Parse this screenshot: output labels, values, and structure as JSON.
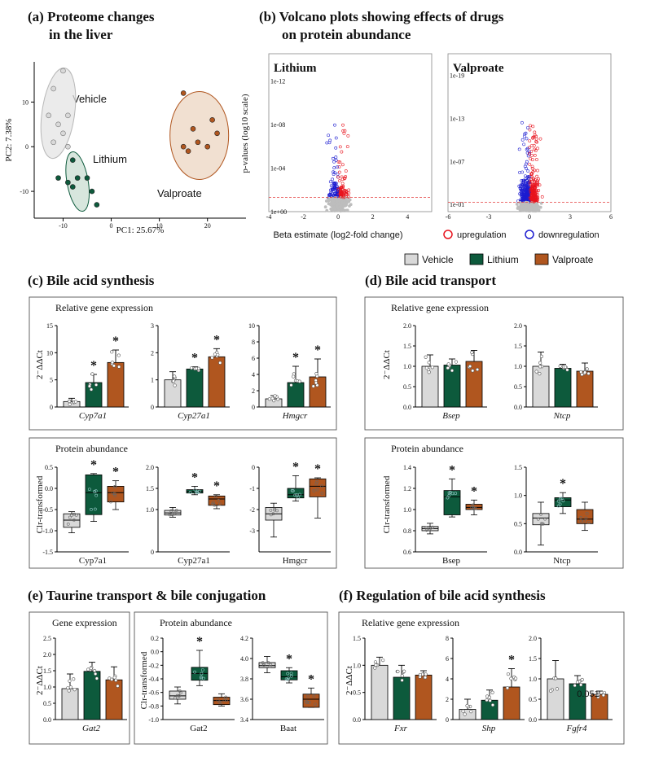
{
  "colors": {
    "vehicle": "#d9d9d9",
    "lithium": "#0d5a3c",
    "valproate": "#b0561f",
    "up": "#e8141e",
    "down": "#1c1cd0",
    "ns": "#bdbdbd",
    "threshold": "#e33b3b"
  },
  "titles": {
    "a1": "(a) Proteome changes",
    "a2": "in the liver",
    "b1": "(b)  Volcano plots showing effects of drugs",
    "b2": "on protein abundance",
    "c": "(c)   Bile acid synthesis",
    "d": "(d)   Bile acid transport",
    "e": "(e)   Taurine transport & bile conjugation",
    "f": "(f)   Regulation of bile acid synthesis"
  },
  "legend": {
    "vehicle": "Vehicle",
    "lithium": "Lithium",
    "valproate": "Valproate",
    "up": "upregulation",
    "down": "downregulation"
  },
  "labels": {
    "rel_gene": "Relative gene expression",
    "protein": "Protein abundance",
    "gene": "Gene expression",
    "ddct": "2⁻ΔΔCt",
    "clr": "Clr-transformed",
    "star": "*",
    "p_fgfr4": "0.051"
  },
  "chart_data": [
    {
      "id": "pca",
      "type": "scatter",
      "title": "Proteome changes in the liver",
      "xlabel": "PC1: 25.67%",
      "ylabel": "PC2: 7.38%",
      "xlim": [
        -16,
        28
      ],
      "ylim": [
        -16,
        19
      ],
      "xticks": [
        "-10",
        "0",
        "10",
        "20"
      ],
      "yticks": [
        "10",
        "0",
        "-10"
      ],
      "series": [
        {
          "name": "Vehicle",
          "points": [
            [
              -10,
              17
            ],
            [
              -12,
              13
            ],
            [
              -13,
              7
            ],
            [
              -9,
              7
            ],
            [
              -11,
              5
            ],
            [
              -10,
              3
            ],
            [
              -12,
              1
            ],
            [
              -9,
              0
            ]
          ]
        },
        {
          "name": "Lithium",
          "points": [
            [
              -8,
              -3
            ],
            [
              -11,
              -7
            ],
            [
              -9,
              -8
            ],
            [
              -8,
              -9
            ],
            [
              -7,
              -7
            ],
            [
              -5,
              -7
            ],
            [
              -4,
              -10
            ],
            [
              -3,
              -13
            ]
          ]
        },
        {
          "name": "Valproate",
          "points": [
            [
              15,
              12
            ],
            [
              21,
              6
            ],
            [
              17,
              4
            ],
            [
              22,
              3
            ],
            [
              18,
              1
            ],
            [
              15,
              0
            ],
            [
              20,
              0
            ],
            [
              16,
              -1
            ]
          ]
        }
      ],
      "group_labels": {
        "vehicle": "Vehicle",
        "lithium": "Lithium",
        "valproate": "Valproate"
      }
    },
    {
      "id": "volc_li",
      "type": "scatter",
      "title": "Lithium",
      "xlabel": "Beta estimate (log2-fold change)",
      "ylabel": "p-values (log10 scale)",
      "xlim": [
        -4,
        5.4
      ],
      "ylim": [
        0,
        14.5
      ],
      "xticks": [
        "-4",
        "-2",
        "0",
        "2",
        "4"
      ],
      "yticks": [
        "1e+00",
        "1e-04",
        "1e-08",
        "1e-12"
      ],
      "ytick_vals": [
        0,
        4,
        8,
        12
      ],
      "threshold": 1.3
    },
    {
      "id": "volc_va",
      "type": "scatter",
      "title": "Valproate",
      "xlabel": "",
      "ylabel": "",
      "xlim": [
        -6,
        6
      ],
      "ylim": [
        0,
        22
      ],
      "xticks": [
        "-6",
        "-3",
        "0",
        "3",
        "6"
      ],
      "yticks": [
        "1e-01",
        "1e-07",
        "1e-13",
        "1e-19"
      ],
      "ytick_vals": [
        1,
        7,
        13,
        19
      ],
      "threshold": 1.3
    },
    {
      "id": "c_gene",
      "type": "bar",
      "title": "Relative gene expression",
      "ylabel": "2⁻ΔΔCt",
      "series_names": [
        "Vehicle",
        "Lithium",
        "Valproate"
      ],
      "subplots": [
        {
          "gene": "Cyp7a1",
          "ylim": [
            0,
            15
          ],
          "yticks": [
            "0",
            "5",
            "10",
            "15"
          ],
          "means": [
            1.0,
            4.5,
            8.2
          ],
          "err": [
            0.6,
            1.5,
            2.3
          ],
          "sig": [
            false,
            true,
            true
          ]
        },
        {
          "gene": "Cyp27a1",
          "ylim": [
            0,
            3
          ],
          "yticks": [
            "0",
            "1",
            "2",
            "3"
          ],
          "means": [
            1.0,
            1.4,
            1.85
          ],
          "err": [
            0.3,
            0.08,
            0.3
          ],
          "sig": [
            false,
            true,
            true
          ]
        },
        {
          "gene": "Hmgcr",
          "ylim": [
            0,
            10
          ],
          "yticks": [
            "0",
            "2",
            "4",
            "6",
            "8",
            "10"
          ],
          "means": [
            1.0,
            3.0,
            3.7
          ],
          "err": [
            0.4,
            2.0,
            2.2
          ],
          "sig": [
            false,
            true,
            true
          ]
        }
      ]
    },
    {
      "id": "c_prot",
      "type": "box",
      "title": "Protein abundance",
      "ylabel": "Clr-transformed",
      "subplots": [
        {
          "gene": "Cyp7a1",
          "ylim": [
            -1.5,
            0.5
          ],
          "yticks": [
            "-1.5",
            "-1.0",
            "-0.5",
            "0.0",
            "0.5"
          ],
          "ytick_vals": [
            -1.5,
            -1.0,
            -0.5,
            0.0,
            0.5
          ],
          "boxes": [
            [
              -1.05,
              -0.92,
              -0.75,
              -0.6,
              -0.55
            ],
            [
              -0.78,
              -0.62,
              -0.1,
              0.32,
              0.35
            ],
            [
              -0.5,
              -0.32,
              -0.1,
              0.05,
              0.18
            ]
          ],
          "sig": [
            false,
            true,
            true
          ]
        },
        {
          "gene": "Cyp27a1",
          "ylim": [
            0,
            2
          ],
          "yticks": [
            "0",
            "1.0",
            "1.5",
            "2.0"
          ],
          "ytick_vals": [
            0,
            1.0,
            1.5,
            2.0
          ],
          "boxes": [
            [
              0.82,
              0.87,
              0.92,
              0.98,
              1.05
            ],
            [
              1.35,
              1.39,
              1.43,
              1.47,
              1.55
            ],
            [
              1.02,
              1.1,
              1.25,
              1.32,
              1.35
            ]
          ],
          "sig": [
            false,
            true,
            true
          ]
        },
        {
          "gene": "Hmgcr",
          "ylim": [
            -4,
            0
          ],
          "yticks": [
            "-3",
            "-2",
            "-1",
            "0"
          ],
          "ytick_vals": [
            -3,
            -2,
            -1,
            0
          ],
          "boxes": [
            [
              -3.3,
              -2.5,
              -2.2,
              -1.9,
              -1.7
            ],
            [
              -1.6,
              -1.45,
              -1.3,
              -1.0,
              -0.4
            ],
            [
              -2.4,
              -1.4,
              -0.9,
              -0.55,
              -0.5
            ]
          ],
          "sig": [
            false,
            true,
            true
          ]
        }
      ]
    },
    {
      "id": "d_gene",
      "type": "bar",
      "title": "Relative gene expression",
      "ylabel": "2⁻ΔΔCt",
      "subplots": [
        {
          "gene": "Bsep",
          "ylim": [
            0,
            2.0
          ],
          "yticks": [
            "0.0",
            "0.5",
            "1.0",
            "1.5",
            "2.0"
          ],
          "means": [
            1.0,
            1.03,
            1.12
          ],
          "err": [
            0.28,
            0.15,
            0.27
          ],
          "sig": [
            false,
            false,
            false
          ]
        },
        {
          "gene": "Ntcp",
          "ylim": [
            0,
            2.0
          ],
          "yticks": [
            "0.0",
            "0.5",
            "1.0",
            "1.5",
            "2.0"
          ],
          "means": [
            1.0,
            0.95,
            0.88
          ],
          "err": [
            0.35,
            0.1,
            0.2
          ],
          "sig": [
            false,
            false,
            false
          ]
        }
      ]
    },
    {
      "id": "d_prot",
      "type": "box",
      "title": "Protein abundance",
      "ylabel": "Clr-transformed",
      "subplots": [
        {
          "gene": "Bsep",
          "ylim": [
            0.6,
            1.4
          ],
          "yticks": [
            "0.6",
            "0.8",
            "1.0",
            "1.2",
            "1.4"
          ],
          "ytick_vals": [
            0.6,
            0.8,
            1.0,
            1.2,
            1.4
          ],
          "boxes": [
            [
              0.77,
              0.8,
              0.82,
              0.84,
              0.87
            ],
            [
              0.93,
              0.95,
              1.12,
              1.18,
              1.29
            ],
            [
              0.95,
              1.0,
              1.02,
              1.05,
              1.09
            ]
          ],
          "sig": [
            false,
            true,
            true
          ]
        },
        {
          "gene": "Ntcp",
          "ylim": [
            0,
            1.5
          ],
          "yticks": [
            "0.0",
            "0.5",
            "1.0",
            "1.5"
          ],
          "ytick_vals": [
            0,
            0.5,
            1.0,
            1.5
          ],
          "boxes": [
            [
              0.12,
              0.48,
              0.6,
              0.68,
              0.88
            ],
            [
              0.68,
              0.8,
              0.92,
              0.96,
              1.05
            ],
            [
              0.38,
              0.5,
              0.58,
              0.75,
              0.88
            ]
          ],
          "sig": [
            false,
            true,
            false
          ]
        }
      ]
    },
    {
      "id": "e_gene",
      "type": "bar",
      "title": "Gene expression",
      "ylabel": "2⁻ΔΔCt",
      "subplots": [
        {
          "gene": "Gat2",
          "ylim": [
            0,
            2.5
          ],
          "yticks": [
            "0.0",
            "0.5",
            "1.0",
            "1.5",
            "2.0",
            "2.5"
          ],
          "means": [
            0.95,
            1.48,
            1.22
          ],
          "err": [
            0.45,
            0.28,
            0.4
          ],
          "sig": [
            false,
            false,
            false
          ]
        }
      ]
    },
    {
      "id": "e_prot",
      "type": "box",
      "title": "Protein abundance",
      "ylabel": "Clr-transformed",
      "subplots": [
        {
          "gene": "Gat2",
          "ylim": [
            -1.0,
            0.2
          ],
          "yticks": [
            "-1.0",
            "-0.8",
            "-0.6",
            "-0.4",
            "-0.2",
            "0.0",
            "0.2"
          ],
          "ytick_vals": [
            -1.0,
            -0.8,
            -0.6,
            -0.4,
            -0.2,
            0.0,
            0.2
          ],
          "boxes": [
            [
              -0.77,
              -0.7,
              -0.65,
              -0.58,
              -0.52
            ],
            [
              -0.5,
              -0.42,
              -0.32,
              -0.23,
              0.02
            ],
            [
              -0.8,
              -0.78,
              -0.72,
              -0.67,
              -0.62
            ]
          ],
          "sig": [
            false,
            true,
            false
          ]
        },
        {
          "gene": "Baat",
          "ylim": [
            3.4,
            4.2
          ],
          "yticks": [
            "3.4",
            "3.6",
            "3.8",
            "4.0",
            "4.2"
          ],
          "ytick_vals": [
            3.4,
            3.6,
            3.8,
            4.0,
            4.2
          ],
          "boxes": [
            [
              3.86,
              3.91,
              3.93,
              3.96,
              4.02
            ],
            [
              3.76,
              3.79,
              3.82,
              3.88,
              3.91
            ],
            [
              3.52,
              3.52,
              3.6,
              3.65,
              3.71
            ]
          ],
          "sig": [
            false,
            true,
            true
          ]
        }
      ]
    },
    {
      "id": "f_gene",
      "type": "bar",
      "title": "Relative gene expression",
      "ylabel": "2⁻ΔΔCt",
      "subplots": [
        {
          "gene": "Fxr",
          "ylim": [
            0,
            1.5
          ],
          "yticks": [
            "0.0",
            "0.5",
            "1.0",
            "1.5"
          ],
          "means": [
            1.0,
            0.78,
            0.82
          ],
          "err": [
            0.15,
            0.22,
            0.08
          ],
          "sig": [
            false,
            false,
            false
          ]
        },
        {
          "gene": "Shp",
          "ylim": [
            0,
            8
          ],
          "yticks": [
            "0",
            "2",
            "4",
            "6",
            "8"
          ],
          "means": [
            1.0,
            1.9,
            3.2
          ],
          "err": [
            1.0,
            1.0,
            1.8
          ],
          "sig": [
            false,
            false,
            true
          ]
        },
        {
          "gene": "Fgfr4",
          "ylim": [
            0,
            2.0
          ],
          "yticks": [
            "0.0",
            "0.5",
            "1.0",
            "1.5",
            "2.0"
          ],
          "means": [
            1.0,
            0.88,
            0.62
          ],
          "err": [
            0.45,
            0.2,
            0.08
          ],
          "sig": [
            false,
            false,
            false
          ],
          "annotation": "0.051"
        }
      ]
    }
  ]
}
